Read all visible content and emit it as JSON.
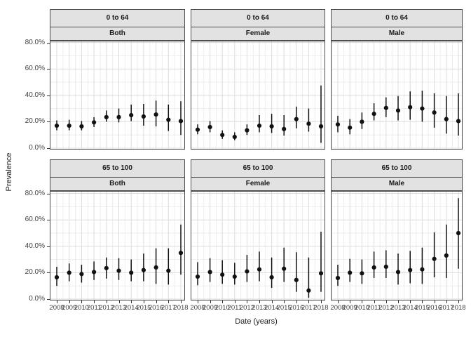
{
  "figure": {
    "colors": {
      "background": "#ffffff",
      "strip_fill": "#e2e2e2",
      "strip_border": "#4d4d4d",
      "panel_border": "#4d4d4d",
      "grid_major": "#dcdcdc",
      "grid_minor": "#ededed",
      "point": "#111111",
      "tick": "#333333",
      "axis_text": "#404040"
    }
  },
  "chart_data": {
    "type": "pointrange-facet-grid",
    "title": "",
    "xlabel": "Date (years)",
    "ylabel": "Prevalence",
    "x": [
      2008,
      2009,
      2010,
      2011,
      2012,
      2013,
      2014,
      2015,
      2016,
      2017,
      2018
    ],
    "x_tick_labels": [
      "2008",
      "2009",
      "2010",
      "2011",
      "2012",
      "2013",
      "2014",
      "2015",
      "2016",
      "2017",
      "2018"
    ],
    "y_tick_labels": [
      "80.0%",
      "60.0%",
      "40.0%",
      "20.0%",
      "0.0%"
    ],
    "y_tick_values": [
      80,
      60,
      40,
      20,
      0
    ],
    "ylim": [
      0,
      82
    ],
    "grid": "major-and-minor",
    "legend": "none",
    "row_facets": [
      "0 to 64",
      "65 to 100"
    ],
    "col_facets": [
      "Both",
      "Female",
      "Male"
    ],
    "units": "percent",
    "panels": [
      {
        "row_label": "0 to 64",
        "col_label": "Both",
        "values": [
          17,
          17,
          16.5,
          19.5,
          23.5,
          23.5,
          25,
          24,
          25.5,
          21.5,
          20.5
        ],
        "lower": [
          13.5,
          13.5,
          13.5,
          16,
          20,
          19.5,
          20.5,
          17,
          16.5,
          13,
          10
        ],
        "upper": [
          21,
          21.5,
          20.5,
          23.5,
          28.5,
          30,
          33,
          33.5,
          36,
          33,
          35.5
        ]
      },
      {
        "row_label": "0 to 64",
        "col_label": "Female",
        "values": [
          14,
          16,
          10,
          8.5,
          13.5,
          17,
          16.5,
          14.5,
          22,
          18.5,
          16.5
        ],
        "lower": [
          10.5,
          12,
          7,
          6,
          10,
          12,
          11.5,
          9.5,
          15,
          12.5,
          4
        ],
        "upper": [
          18,
          20.5,
          13.5,
          12,
          18,
          25,
          26,
          25,
          31.5,
          30,
          47.5
        ]
      },
      {
        "row_label": "0 to 64",
        "col_label": "Male",
        "values": [
          18,
          15.5,
          20,
          26,
          30.5,
          28.5,
          31,
          30,
          27,
          22,
          20.5
        ],
        "lower": [
          12,
          10.5,
          14.5,
          21,
          23.5,
          21,
          21.5,
          20,
          15.5,
          11,
          9.5
        ],
        "upper": [
          24.5,
          22,
          27,
          34,
          38.5,
          39.5,
          43,
          43.5,
          41.5,
          39.5,
          41.5
        ]
      },
      {
        "row_label": "65 to 100",
        "col_label": "Both",
        "values": [
          16.5,
          20,
          19,
          20.5,
          23.5,
          21.5,
          20,
          22,
          24,
          21.5,
          35
        ],
        "lower": [
          10,
          13.5,
          12.5,
          14.5,
          15.5,
          14.5,
          13.5,
          13.5,
          11.5,
          11,
          18.5
        ],
        "upper": [
          24.5,
          27,
          26,
          28.5,
          31.5,
          31,
          30,
          34.5,
          38.5,
          38.5,
          56.5
        ]
      },
      {
        "row_label": "65 to 100",
        "col_label": "Female",
        "values": [
          17,
          20.5,
          18.5,
          17,
          21,
          22.5,
          16.5,
          23,
          14.5,
          6.5,
          19.5
        ],
        "lower": [
          10.5,
          13,
          11.5,
          11,
          13,
          13.5,
          8.5,
          13,
          5.5,
          1,
          5.5
        ],
        "upper": [
          28,
          31,
          29.5,
          27.5,
          33.5,
          36,
          31.5,
          39,
          35.5,
          31.5,
          51
        ]
      },
      {
        "row_label": "65 to 100",
        "col_label": "Male",
        "values": [
          16,
          20,
          19.5,
          24,
          24.5,
          20.5,
          22,
          22.5,
          30.5,
          33,
          50
        ],
        "lower": [
          10,
          13,
          11.5,
          16,
          16,
          11,
          12,
          11.5,
          16.5,
          16,
          23
        ],
        "upper": [
          26,
          30.5,
          30,
          36,
          37,
          34.5,
          36.5,
          39,
          50.5,
          56.5,
          76.5
        ]
      }
    ]
  }
}
